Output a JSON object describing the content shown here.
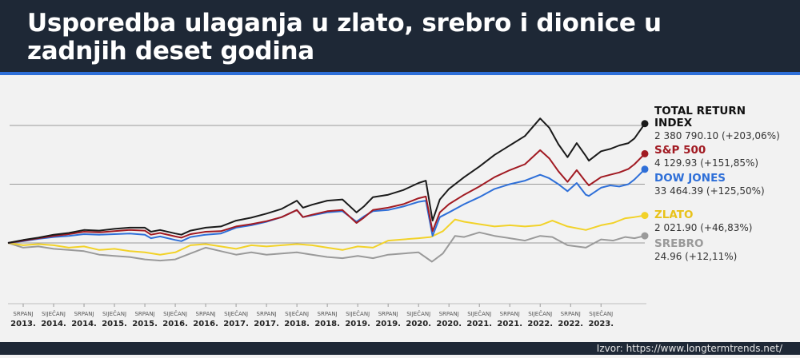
{
  "header": {
    "title": "Usporedba ulaganja u zlato, srebro i dionice u zadnjih deset godina"
  },
  "footer": {
    "source": "Izvor: https://www.longtermtrends.net/"
  },
  "colors": {
    "header_bg": "#1e2836",
    "accent": "#2e6fd8",
    "total_return": "#1a1a1a",
    "sp500": "#a11a22",
    "dow_jones": "#2e6fd8",
    "zlato": "#f2d229",
    "srebro": "#9a9a9a"
  },
  "chart_data": {
    "type": "line",
    "title": "Usporedba ulaganja u zlato, srebro i dionice u zadnjih deset godina",
    "x_ticks": [
      {
        "t": 2013.5,
        "month": "SRPANJ",
        "year": "2013."
      },
      {
        "t": 2014.0,
        "month": "SIJEČANJ",
        "year": "2014."
      },
      {
        "t": 2014.5,
        "month": "SRPANJ",
        "year": "2014."
      },
      {
        "t": 2015.0,
        "month": "SIJEČANJ",
        "year": "2015."
      },
      {
        "t": 2015.5,
        "month": "SRPANJ",
        "year": "2015."
      },
      {
        "t": 2016.0,
        "month": "SIJEČANJ",
        "year": "2016."
      },
      {
        "t": 2016.5,
        "month": "SRPANJ",
        "year": "2016."
      },
      {
        "t": 2017.0,
        "month": "SIJEČANJ",
        "year": "2017."
      },
      {
        "t": 2017.5,
        "month": "SRPANJ",
        "year": "2017."
      },
      {
        "t": 2018.0,
        "month": "SIJEČANJ",
        "year": "2018."
      },
      {
        "t": 2018.5,
        "month": "SRPANJ",
        "year": "2018."
      },
      {
        "t": 2019.0,
        "month": "SIJEČANJ",
        "year": "2019."
      },
      {
        "t": 2019.5,
        "month": "SRPANJ",
        "year": "2019."
      },
      {
        "t": 2020.0,
        "month": "SIJEČANJ",
        "year": "2020."
      },
      {
        "t": 2020.5,
        "month": "SRPANJ",
        "year": "2020."
      },
      {
        "t": 2021.0,
        "month": "SIJEČANJ",
        "year": "2021."
      },
      {
        "t": 2021.5,
        "month": "SRPANJ",
        "year": "2021."
      },
      {
        "t": 2022.0,
        "month": "SIJEČANJ",
        "year": "2022."
      },
      {
        "t": 2022.5,
        "month": "SRPANJ",
        "year": "2022."
      },
      {
        "t": 2023.0,
        "month": "SIJEČANJ",
        "year": "2023."
      }
    ],
    "xlim": [
      2013.25,
      2023.72
    ],
    "ylabel_unit": "% change",
    "ylim": [
      -40,
      235
    ],
    "gridlines_pct": [
      0,
      100,
      200
    ],
    "grid": true,
    "legend_position": "right",
    "series": [
      {
        "key": "total_return",
        "name": "TOTAL RETURN INDEX",
        "value_label": "2 380 790.10 (+203,06%)",
        "points": [
          [
            2013.25,
            0
          ],
          [
            2013.5,
            5
          ],
          [
            2013.75,
            9
          ],
          [
            2014.0,
            14
          ],
          [
            2014.25,
            17
          ],
          [
            2014.5,
            22
          ],
          [
            2014.75,
            21
          ],
          [
            2015.0,
            24
          ],
          [
            2015.25,
            26
          ],
          [
            2015.5,
            26
          ],
          [
            2015.6,
            19
          ],
          [
            2015.75,
            22
          ],
          [
            2016.0,
            16
          ],
          [
            2016.1,
            14
          ],
          [
            2016.25,
            21
          ],
          [
            2016.5,
            26
          ],
          [
            2016.75,
            28
          ],
          [
            2017.0,
            38
          ],
          [
            2017.25,
            43
          ],
          [
            2017.5,
            50
          ],
          [
            2017.75,
            58
          ],
          [
            2018.0,
            72
          ],
          [
            2018.1,
            60
          ],
          [
            2018.25,
            65
          ],
          [
            2018.5,
            72
          ],
          [
            2018.75,
            74
          ],
          [
            2018.98,
            52
          ],
          [
            2019.1,
            62
          ],
          [
            2019.25,
            78
          ],
          [
            2019.5,
            82
          ],
          [
            2019.75,
            90
          ],
          [
            2020.0,
            102
          ],
          [
            2020.12,
            106
          ],
          [
            2020.23,
            38
          ],
          [
            2020.35,
            74
          ],
          [
            2020.5,
            92
          ],
          [
            2020.75,
            112
          ],
          [
            2021.0,
            130
          ],
          [
            2021.25,
            150
          ],
          [
            2021.5,
            166
          ],
          [
            2021.75,
            182
          ],
          [
            2022.0,
            212
          ],
          [
            2022.15,
            196
          ],
          [
            2022.3,
            168
          ],
          [
            2022.45,
            146
          ],
          [
            2022.6,
            170
          ],
          [
            2022.75,
            148
          ],
          [
            2022.8,
            140
          ],
          [
            2023.0,
            156
          ],
          [
            2023.15,
            160
          ],
          [
            2023.3,
            166
          ],
          [
            2023.45,
            170
          ],
          [
            2023.55,
            178
          ],
          [
            2023.72,
            203.06
          ]
        ]
      },
      {
        "key": "sp500",
        "name": "S&P 500",
        "value_label": "4 129.93 (+151,85%)",
        "points": [
          [
            2013.25,
            0
          ],
          [
            2013.5,
            4
          ],
          [
            2013.75,
            8
          ],
          [
            2014.0,
            12
          ],
          [
            2014.25,
            15
          ],
          [
            2014.5,
            19
          ],
          [
            2014.75,
            18
          ],
          [
            2015.0,
            20
          ],
          [
            2015.25,
            22
          ],
          [
            2015.5,
            21
          ],
          [
            2015.6,
            14
          ],
          [
            2015.75,
            17
          ],
          [
            2016.0,
            11
          ],
          [
            2016.1,
            9
          ],
          [
            2016.25,
            15
          ],
          [
            2016.5,
            19
          ],
          [
            2016.75,
            20
          ],
          [
            2017.0,
            28
          ],
          [
            2017.25,
            32
          ],
          [
            2017.5,
            37
          ],
          [
            2017.75,
            44
          ],
          [
            2018.0,
            56
          ],
          [
            2018.1,
            44
          ],
          [
            2018.25,
            48
          ],
          [
            2018.5,
            54
          ],
          [
            2018.75,
            56
          ],
          [
            2018.98,
            34
          ],
          [
            2019.1,
            43
          ],
          [
            2019.25,
            56
          ],
          [
            2019.5,
            60
          ],
          [
            2019.75,
            66
          ],
          [
            2020.0,
            76
          ],
          [
            2020.12,
            79
          ],
          [
            2020.23,
            20
          ],
          [
            2020.35,
            52
          ],
          [
            2020.5,
            66
          ],
          [
            2020.75,
            82
          ],
          [
            2021.0,
            96
          ],
          [
            2021.25,
            112
          ],
          [
            2021.5,
            124
          ],
          [
            2021.75,
            134
          ],
          [
            2022.0,
            158
          ],
          [
            2022.15,
            144
          ],
          [
            2022.3,
            122
          ],
          [
            2022.45,
            104
          ],
          [
            2022.6,
            124
          ],
          [
            2022.75,
            104
          ],
          [
            2022.8,
            98
          ],
          [
            2023.0,
            112
          ],
          [
            2023.15,
            116
          ],
          [
            2023.3,
            120
          ],
          [
            2023.45,
            126
          ],
          [
            2023.55,
            134
          ],
          [
            2023.72,
            151.85
          ]
        ]
      },
      {
        "key": "dow_jones",
        "name": "DOW JONES",
        "value_label": "33 464.39 (+125,50%)",
        "points": [
          [
            2013.25,
            0
          ],
          [
            2013.5,
            3
          ],
          [
            2013.75,
            7
          ],
          [
            2014.0,
            10
          ],
          [
            2014.25,
            12
          ],
          [
            2014.5,
            15
          ],
          [
            2014.75,
            14
          ],
          [
            2015.0,
            15
          ],
          [
            2015.25,
            16
          ],
          [
            2015.5,
            14
          ],
          [
            2015.6,
            8
          ],
          [
            2015.75,
            11
          ],
          [
            2016.0,
            5
          ],
          [
            2016.1,
            3
          ],
          [
            2016.25,
            10
          ],
          [
            2016.5,
            14
          ],
          [
            2016.75,
            16
          ],
          [
            2017.0,
            26
          ],
          [
            2017.25,
            30
          ],
          [
            2017.5,
            36
          ],
          [
            2017.75,
            44
          ],
          [
            2018.0,
            56
          ],
          [
            2018.1,
            44
          ],
          [
            2018.25,
            47
          ],
          [
            2018.5,
            52
          ],
          [
            2018.75,
            54
          ],
          [
            2018.98,
            36
          ],
          [
            2019.1,
            45
          ],
          [
            2019.25,
            54
          ],
          [
            2019.5,
            56
          ],
          [
            2019.75,
            62
          ],
          [
            2020.0,
            70
          ],
          [
            2020.12,
            72
          ],
          [
            2020.23,
            12
          ],
          [
            2020.35,
            44
          ],
          [
            2020.5,
            52
          ],
          [
            2020.75,
            66
          ],
          [
            2021.0,
            78
          ],
          [
            2021.25,
            92
          ],
          [
            2021.5,
            100
          ],
          [
            2021.75,
            106
          ],
          [
            2022.0,
            116
          ],
          [
            2022.15,
            110
          ],
          [
            2022.3,
            100
          ],
          [
            2022.45,
            88
          ],
          [
            2022.6,
            102
          ],
          [
            2022.75,
            82
          ],
          [
            2022.8,
            80
          ],
          [
            2023.0,
            94
          ],
          [
            2023.15,
            98
          ],
          [
            2023.3,
            96
          ],
          [
            2023.45,
            100
          ],
          [
            2023.55,
            108
          ],
          [
            2023.72,
            125.5
          ]
        ]
      },
      {
        "key": "zlato",
        "name": "ZLATO",
        "value_label": "2 021.90 (+46,83%)",
        "points": [
          [
            2013.25,
            0
          ],
          [
            2013.5,
            -4
          ],
          [
            2013.75,
            -2
          ],
          [
            2014.0,
            -4
          ],
          [
            2014.25,
            -8
          ],
          [
            2014.5,
            -6
          ],
          [
            2014.75,
            -12
          ],
          [
            2015.0,
            -10
          ],
          [
            2015.25,
            -14
          ],
          [
            2015.5,
            -16
          ],
          [
            2015.75,
            -20
          ],
          [
            2016.0,
            -16
          ],
          [
            2016.25,
            -4
          ],
          [
            2016.5,
            -2
          ],
          [
            2016.75,
            -6
          ],
          [
            2017.0,
            -10
          ],
          [
            2017.25,
            -4
          ],
          [
            2017.5,
            -6
          ],
          [
            2017.75,
            -4
          ],
          [
            2018.0,
            -2
          ],
          [
            2018.25,
            -4
          ],
          [
            2018.5,
            -8
          ],
          [
            2018.75,
            -12
          ],
          [
            2019.0,
            -6
          ],
          [
            2019.25,
            -8
          ],
          [
            2019.5,
            4
          ],
          [
            2019.75,
            6
          ],
          [
            2020.0,
            8
          ],
          [
            2020.2,
            10
          ],
          [
            2020.4,
            20
          ],
          [
            2020.6,
            40
          ],
          [
            2020.75,
            36
          ],
          [
            2021.0,
            32
          ],
          [
            2021.25,
            28
          ],
          [
            2021.5,
            30
          ],
          [
            2021.75,
            28
          ],
          [
            2022.0,
            30
          ],
          [
            2022.2,
            38
          ],
          [
            2022.45,
            28
          ],
          [
            2022.75,
            22
          ],
          [
            2023.0,
            30
          ],
          [
            2023.2,
            34
          ],
          [
            2023.4,
            42
          ],
          [
            2023.55,
            44
          ],
          [
            2023.72,
            46.83
          ]
        ]
      },
      {
        "key": "srebro",
        "name": "SREBRO",
        "value_label": "24.96 (+12,11%)",
        "points": [
          [
            2013.25,
            0
          ],
          [
            2013.5,
            -8
          ],
          [
            2013.75,
            -6
          ],
          [
            2014.0,
            -10
          ],
          [
            2014.25,
            -12
          ],
          [
            2014.5,
            -14
          ],
          [
            2014.75,
            -20
          ],
          [
            2015.0,
            -22
          ],
          [
            2015.25,
            -24
          ],
          [
            2015.5,
            -28
          ],
          [
            2015.75,
            -30
          ],
          [
            2016.0,
            -28
          ],
          [
            2016.25,
            -18
          ],
          [
            2016.5,
            -8
          ],
          [
            2016.75,
            -14
          ],
          [
            2017.0,
            -20
          ],
          [
            2017.25,
            -16
          ],
          [
            2017.5,
            -20
          ],
          [
            2017.75,
            -18
          ],
          [
            2018.0,
            -16
          ],
          [
            2018.25,
            -20
          ],
          [
            2018.5,
            -24
          ],
          [
            2018.75,
            -26
          ],
          [
            2019.0,
            -22
          ],
          [
            2019.25,
            -26
          ],
          [
            2019.5,
            -20
          ],
          [
            2019.75,
            -18
          ],
          [
            2020.0,
            -16
          ],
          [
            2020.22,
            -32
          ],
          [
            2020.4,
            -18
          ],
          [
            2020.6,
            12
          ],
          [
            2020.75,
            10
          ],
          [
            2021.0,
            18
          ],
          [
            2021.25,
            12
          ],
          [
            2021.5,
            8
          ],
          [
            2021.75,
            4
          ],
          [
            2022.0,
            12
          ],
          [
            2022.2,
            10
          ],
          [
            2022.45,
            -4
          ],
          [
            2022.75,
            -8
          ],
          [
            2023.0,
            6
          ],
          [
            2023.2,
            4
          ],
          [
            2023.4,
            10
          ],
          [
            2023.55,
            8
          ],
          [
            2023.72,
            12.11
          ]
        ]
      }
    ]
  }
}
